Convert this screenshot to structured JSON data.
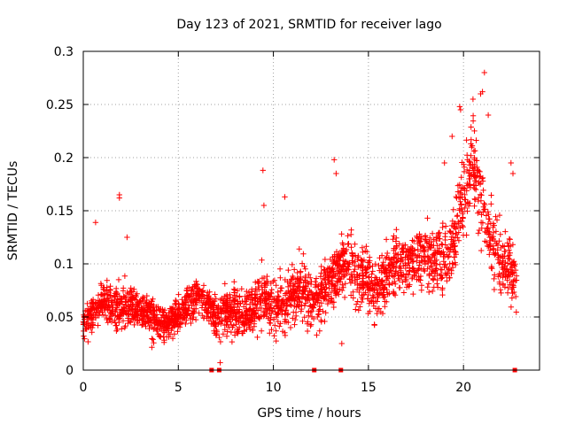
{
  "chart_data": {
    "type": "scatter",
    "title": "Day 123 of 2021, SRMTID for receiver lago",
    "xlabel": "GPS time / hours",
    "ylabel": "SRMTID / TECUs",
    "xlim": [
      0,
      24
    ],
    "ylim": [
      0,
      0.3
    ],
    "grid": true,
    "marker": "+",
    "color": "#ff0000",
    "xticks": [
      {
        "value": 0,
        "label": "0"
      },
      {
        "value": 5,
        "label": "5"
      },
      {
        "value": 10,
        "label": "10"
      },
      {
        "value": 15,
        "label": "15"
      },
      {
        "value": 20,
        "label": "20"
      }
    ],
    "yticks": [
      {
        "value": 0,
        "label": "0"
      },
      {
        "value": 0.05,
        "label": "0.05"
      },
      {
        "value": 0.1,
        "label": "0.1"
      },
      {
        "value": 0.15,
        "label": "0.15"
      },
      {
        "value": 0.2,
        "label": "0.2"
      },
      {
        "value": 0.25,
        "label": "0.25"
      },
      {
        "value": 0.3,
        "label": "0.3"
      }
    ],
    "trend": [
      [
        0.0,
        0.045
      ],
      [
        0.5,
        0.055
      ],
      [
        1.0,
        0.065
      ],
      [
        1.5,
        0.058
      ],
      [
        2.0,
        0.06
      ],
      [
        2.5,
        0.062
      ],
      [
        3.0,
        0.055
      ],
      [
        3.5,
        0.05
      ],
      [
        4.0,
        0.045
      ],
      [
        4.5,
        0.045
      ],
      [
        5.0,
        0.05
      ],
      [
        5.5,
        0.062
      ],
      [
        6.0,
        0.07
      ],
      [
        6.5,
        0.06
      ],
      [
        7.0,
        0.052
      ],
      [
        7.5,
        0.055
      ],
      [
        8.0,
        0.055
      ],
      [
        8.5,
        0.05
      ],
      [
        9.0,
        0.06
      ],
      [
        9.5,
        0.07
      ],
      [
        10.0,
        0.06
      ],
      [
        10.5,
        0.06
      ],
      [
        11.0,
        0.07
      ],
      [
        11.5,
        0.075
      ],
      [
        12.0,
        0.065
      ],
      [
        12.5,
        0.07
      ],
      [
        13.0,
        0.09
      ],
      [
        13.5,
        0.095
      ],
      [
        14.0,
        0.1
      ],
      [
        14.5,
        0.085
      ],
      [
        15.0,
        0.085
      ],
      [
        15.5,
        0.075
      ],
      [
        16.0,
        0.09
      ],
      [
        16.5,
        0.105
      ],
      [
        17.0,
        0.1
      ],
      [
        17.5,
        0.105
      ],
      [
        18.0,
        0.11
      ],
      [
        18.5,
        0.1
      ],
      [
        19.0,
        0.105
      ],
      [
        19.5,
        0.12
      ],
      [
        20.0,
        0.17
      ],
      [
        20.5,
        0.2
      ],
      [
        21.0,
        0.15
      ],
      [
        21.5,
        0.12
      ],
      [
        22.0,
        0.1
      ],
      [
        22.5,
        0.095
      ],
      [
        22.8,
        0.085
      ]
    ],
    "spread": [
      [
        0.0,
        0.02
      ],
      [
        2.0,
        0.025
      ],
      [
        5.0,
        0.02
      ],
      [
        9.0,
        0.03
      ],
      [
        13.0,
        0.035
      ],
      [
        17.0,
        0.035
      ],
      [
        20.0,
        0.045
      ],
      [
        21.0,
        0.05
      ],
      [
        22.8,
        0.035
      ]
    ],
    "time_range": [
      0.0,
      22.8
    ],
    "point_count": 2600,
    "outliers": [
      {
        "x": 0.65,
        "y": 0.139
      },
      {
        "x": 1.9,
        "y": 0.162
      },
      {
        "x": 1.9,
        "y": 0.165
      },
      {
        "x": 2.3,
        "y": 0.125
      },
      {
        "x": 7.2,
        "y": 0.007
      },
      {
        "x": 9.45,
        "y": 0.188
      },
      {
        "x": 9.5,
        "y": 0.155
      },
      {
        "x": 10.6,
        "y": 0.163
      },
      {
        "x": 13.2,
        "y": 0.198
      },
      {
        "x": 13.3,
        "y": 0.185
      },
      {
        "x": 13.6,
        "y": 0.025
      },
      {
        "x": 19.0,
        "y": 0.195
      },
      {
        "x": 19.4,
        "y": 0.22
      },
      {
        "x": 19.8,
        "y": 0.248
      },
      {
        "x": 19.85,
        "y": 0.245
      },
      {
        "x": 20.5,
        "y": 0.255
      },
      {
        "x": 20.9,
        "y": 0.26
      },
      {
        "x": 21.0,
        "y": 0.262
      },
      {
        "x": 21.1,
        "y": 0.28
      },
      {
        "x": 21.3,
        "y": 0.24
      },
      {
        "x": 22.5,
        "y": 0.195
      },
      {
        "x": 22.6,
        "y": 0.185
      }
    ],
    "zero_markers": [
      6.75,
      7.15,
      12.15,
      13.55,
      22.7
    ]
  }
}
